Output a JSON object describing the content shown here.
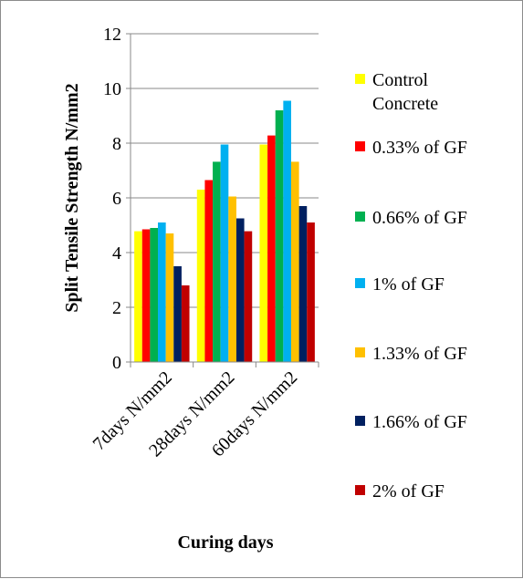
{
  "chart_data": {
    "type": "bar",
    "title": "",
    "xlabel": "Curing days",
    "ylabel": "Split Tensile Strength  N/mm2",
    "ylim": [
      0,
      12
    ],
    "yticks": [
      "0",
      "2",
      "4",
      "6",
      "8",
      "10",
      "12"
    ],
    "grid": true,
    "legend_position": "right",
    "categories": [
      "7days N/mm2",
      "28days N/mm2",
      "60days N/mm2"
    ],
    "series": [
      {
        "name": "Control Concrete",
        "color": "#ffff00",
        "values": [
          4.78,
          6.3,
          7.95
        ]
      },
      {
        "name": "0.33% of GF",
        "color": "#ff0000",
        "values": [
          4.85,
          6.65,
          8.28
        ]
      },
      {
        "name": "0.66% of GF",
        "color": "#00b050",
        "values": [
          4.9,
          7.32,
          9.2
        ]
      },
      {
        "name": "1% of GF",
        "color": "#00b0f0",
        "values": [
          5.1,
          7.95,
          9.55
        ]
      },
      {
        "name": "1.33% of GF",
        "color": "#ffc000",
        "values": [
          4.7,
          6.05,
          7.32
        ]
      },
      {
        "name": "1.66% of GF",
        "color": "#002060",
        "values": [
          3.5,
          5.25,
          5.7
        ]
      },
      {
        "name": "2% of GF",
        "color": "#c00000",
        "values": [
          2.8,
          4.78,
          5.1
        ]
      }
    ]
  }
}
